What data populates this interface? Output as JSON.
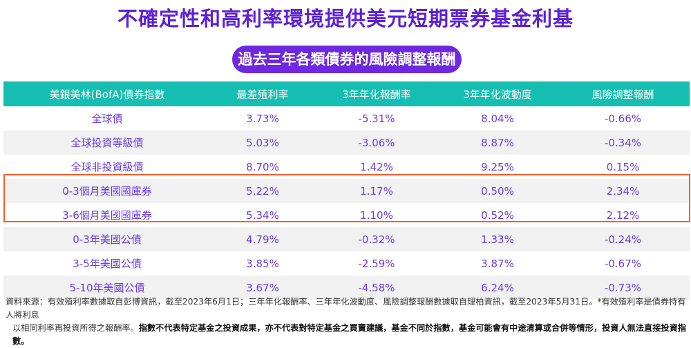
{
  "title": "不確定性和高利率環境提供美元短期票券基金利基",
  "subtitle": "過去三年各類債券的風險調整報酬",
  "table": {
    "headers": [
      "美銀美林(BofA)債券指數",
      "最差殖利率",
      "3年年化報酬率",
      "3年年化波動度",
      "風險調整報酬"
    ],
    "rows": [
      [
        "全球債",
        "3.73%",
        "-5.31%",
        "8.04%",
        "-0.66%"
      ],
      [
        "全球投資等級債",
        "5.03%",
        "-3.06%",
        "8.87%",
        "-0.34%"
      ],
      [
        "全球非投資級債",
        "8.70%",
        "1.42%",
        "9.25%",
        "0.15%"
      ],
      [
        "0-3個月美國國庫券",
        "5.22%",
        "1.17%",
        "0.50%",
        "2.34%"
      ],
      [
        "3-6個月美國國庫券",
        "5.34%",
        "1.10%",
        "0.52%",
        "2.12%"
      ],
      [
        "0-3年美國公債",
        "4.79%",
        "-0.32%",
        "1.33%",
        "-0.24%"
      ],
      [
        "3-5年美國公債",
        "3.85%",
        "-2.59%",
        "3.87%",
        "-0.67%"
      ],
      [
        "5-10年美國公債",
        "3.67%",
        "-4.58%",
        "6.24%",
        "-0.73%"
      ]
    ]
  },
  "footnote": {
    "line1": "資料來源：有效殖利率數據取自彭博資訊，截至2023年6月1日；三年年化報酬率、三年年化波動度、風險調整報酬數據取自理柏資訊，截至2023年5月31日。*有效殖利率是債券持有人將利息",
    "line2_normal": "以相同利率再投資所得之報酬率。",
    "line2_bold": "指數不代表特定基金之投資成果，亦不代表對特定基金之買賣建議，基金不同於指數，基金可能會有中途清算或合併等情形，投資人無法直接投資指數。"
  }
}
